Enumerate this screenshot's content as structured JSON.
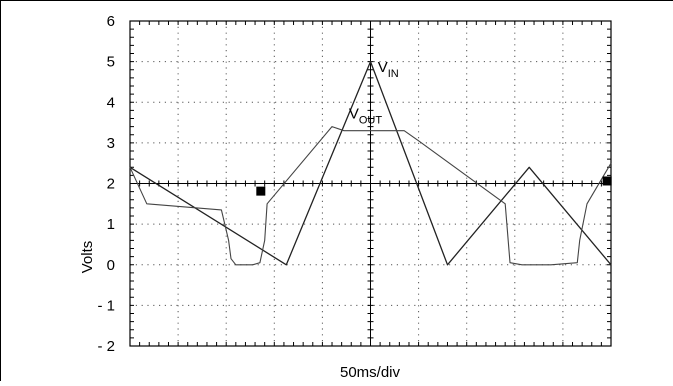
{
  "chart_data": {
    "type": "line",
    "xlabel": "50ms/div",
    "ylabel": "Volts",
    "ylim": [
      -2,
      6
    ],
    "xlim": [
      0,
      10
    ],
    "yticks": [
      "6",
      "5",
      "4",
      "3",
      "2",
      "1",
      "0",
      "- 1",
      "- 2"
    ],
    "grid": true,
    "annotations": [
      {
        "id": "vin",
        "main": "V",
        "sub": "IN",
        "x": 5.15,
        "y": 4.75
      },
      {
        "id": "vout",
        "main": "V",
        "sub": "OUT",
        "x": 4.55,
        "y": 3.6
      }
    ],
    "series": [
      {
        "id": "vin",
        "x": [
          0,
          3.25,
          5.0,
          6.6,
          8.3,
          10.0
        ],
        "y": [
          2.4,
          0.0,
          5.0,
          0.0,
          2.4,
          0.0
        ]
      },
      {
        "id": "vout",
        "x": [
          0,
          0.35,
          1.9,
          2.05,
          2.1,
          2.2,
          2.55,
          2.7,
          2.8,
          2.85,
          4.2,
          4.45,
          5.7,
          6.0,
          7.8,
          7.9,
          8.15,
          8.25,
          8.75,
          9.3,
          9.35,
          9.5,
          10.0
        ],
        "y": [
          2.4,
          1.5,
          1.35,
          0.6,
          0.15,
          0.0,
          0.0,
          0.05,
          0.6,
          1.5,
          3.4,
          3.3,
          3.3,
          3.05,
          1.5,
          0.05,
          0.0,
          0.0,
          0.0,
          0.05,
          0.6,
          1.5,
          2.5
        ]
      }
    ],
    "markers": [
      {
        "id": "ch-marker-left",
        "x": 2.73,
        "y": 1.8
      },
      {
        "id": "ch-marker-right",
        "x": 9.93,
        "y": 2.05
      }
    ]
  }
}
